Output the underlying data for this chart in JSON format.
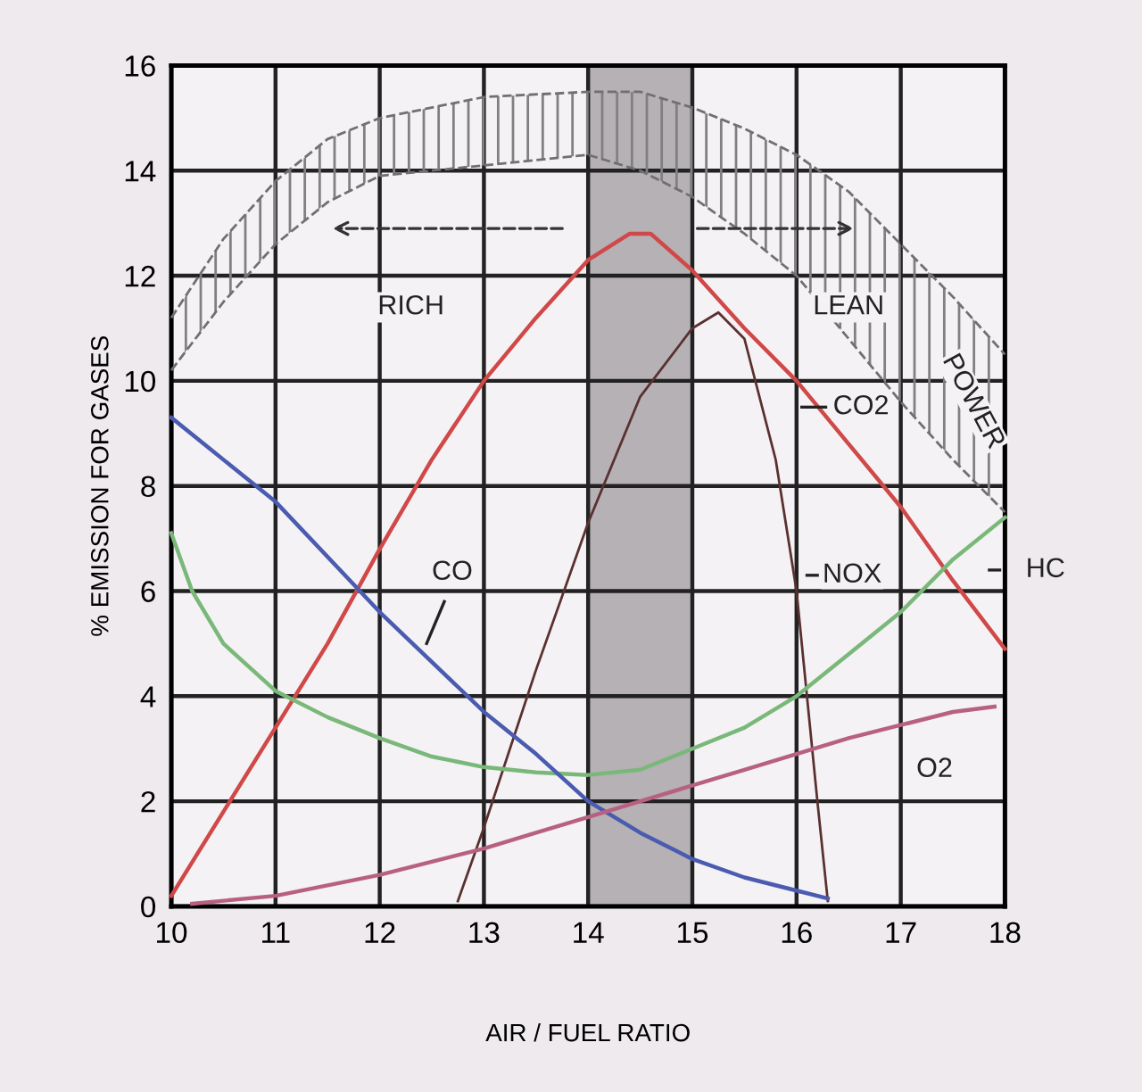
{
  "chart_data": {
    "type": "line",
    "xlabel": "AIR / FUEL RATIO",
    "ylabel": "% EMISSION FOR GASES",
    "xlim": [
      10,
      18
    ],
    "ylim": [
      0,
      16
    ],
    "xticks": [
      10,
      11,
      12,
      13,
      14,
      15,
      16,
      17,
      18
    ],
    "yticks": [
      0,
      2,
      4,
      6,
      8,
      10,
      12,
      14,
      16
    ],
    "grid": true,
    "bands": [
      {
        "axis": "x",
        "from": 14,
        "to": 15,
        "color": "#b5b1b5"
      }
    ],
    "annotations": [
      "RICH",
      "LEAN"
    ],
    "series": [
      {
        "name": "POWER",
        "line_style": "dashed",
        "color": "#707070",
        "x": [
          10,
          10.5,
          11,
          11.5,
          12,
          13,
          14,
          14.5,
          15,
          15.5,
          16,
          16.5,
          17,
          17.5,
          18
        ],
        "values": [
          11.2,
          12.7,
          13.8,
          14.6,
          15.0,
          15.4,
          15.5,
          15.5,
          15.2,
          14.8,
          14.3,
          13.6,
          12.6,
          11.6,
          10.5
        ]
      },
      {
        "line_style": "dashed",
        "color": "#707070",
        "x": [
          10,
          10.5,
          11,
          11.5,
          12,
          13,
          14,
          14.5,
          15,
          15.5,
          16,
          16.5,
          17,
          17.5,
          18
        ],
        "values": [
          10.2,
          11.5,
          12.6,
          13.4,
          13.9,
          14.1,
          14.3,
          14.0,
          13.5,
          12.8,
          12.0,
          10.8,
          9.6,
          8.5,
          7.5
        ]
      },
      {
        "name": "CO2",
        "color": "#d04848",
        "x": [
          10,
          10.5,
          11,
          11.5,
          12,
          12.5,
          13,
          13.5,
          14,
          14.4,
          14.6,
          15,
          15.5,
          16,
          16.5,
          17,
          17.5,
          18
        ],
        "values": [
          0.2,
          1.8,
          3.4,
          5.0,
          6.8,
          8.5,
          10.0,
          11.2,
          12.3,
          12.8,
          12.8,
          12.1,
          11.0,
          10.0,
          8.8,
          7.6,
          6.2,
          4.9
        ]
      },
      {
        "name": "NOX",
        "color": "#5a3030",
        "x": [
          12.75,
          13,
          13.5,
          14,
          14.5,
          15,
          15.25,
          15.5,
          15.8,
          16,
          16.1,
          16.2,
          16.3
        ],
        "values": [
          0.1,
          1.5,
          4.5,
          7.3,
          9.7,
          11.0,
          11.3,
          10.8,
          8.5,
          6.0,
          4.0,
          2.0,
          0.1
        ]
      },
      {
        "name": "HC",
        "color": "#7ab87a",
        "x": [
          10,
          10.2,
          10.5,
          11,
          11.5,
          12,
          12.5,
          13,
          13.5,
          14,
          14.5,
          15,
          15.5,
          16,
          16.5,
          17,
          17.5,
          18
        ],
        "values": [
          7.1,
          6.0,
          5.0,
          4.1,
          3.6,
          3.2,
          2.85,
          2.65,
          2.55,
          2.5,
          2.6,
          3.0,
          3.4,
          4.0,
          4.8,
          5.6,
          6.6,
          7.4
        ]
      },
      {
        "name": "CO",
        "color": "#4a5bb0",
        "x": [
          10,
          11,
          12,
          13,
          13.5,
          14,
          14.5,
          15,
          15.5,
          16,
          16.3
        ],
        "values": [
          9.3,
          7.7,
          5.6,
          3.7,
          2.9,
          2.0,
          1.4,
          0.9,
          0.55,
          0.3,
          0.15
        ]
      },
      {
        "name": "O2",
        "color": "#b86080",
        "x": [
          10.2,
          11,
          11.5,
          12,
          12.5,
          13,
          13.5,
          14,
          14.5,
          15,
          15.5,
          16,
          16.5,
          17,
          17.5,
          17.9
        ],
        "values": [
          0.05,
          0.2,
          0.4,
          0.6,
          0.85,
          1.1,
          1.4,
          1.7,
          2.0,
          2.3,
          2.6,
          2.9,
          3.2,
          3.45,
          3.7,
          3.8
        ]
      }
    ]
  }
}
